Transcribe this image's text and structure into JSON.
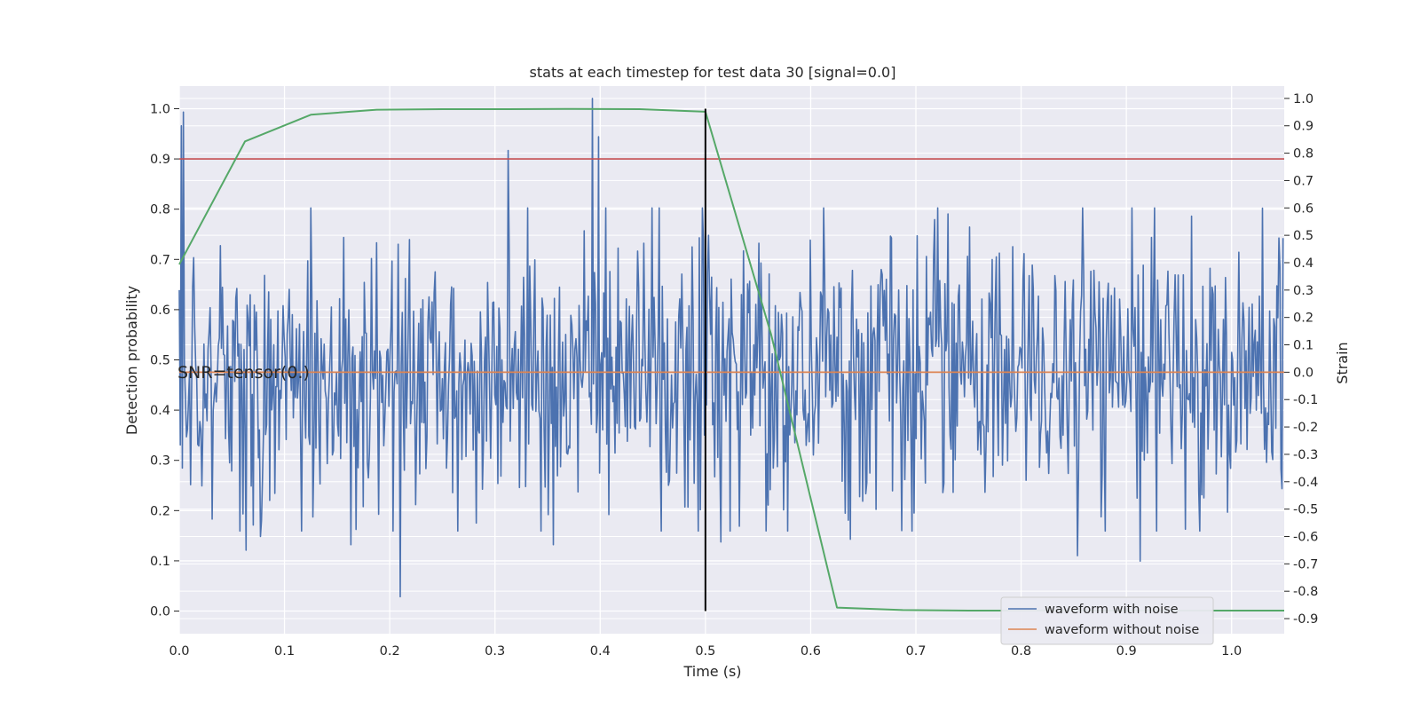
{
  "chart_data": {
    "type": "line",
    "title": "stats at each timestep for test data 30 [signal=0.0]",
    "xlabel": "Time (s)",
    "ylabel_left": "Detection probability",
    "ylabel_right": "Strain",
    "xlim": [
      0.0,
      1.05
    ],
    "ylim_left": [
      -0.045,
      1.045
    ],
    "ylim_right": [
      -0.955,
      1.045
    ],
    "x_ticks": [
      "0.0",
      "0.1",
      "0.2",
      "0.3",
      "0.4",
      "0.5",
      "0.6",
      "0.7",
      "0.8",
      "0.9",
      "1.0"
    ],
    "y_ticks_left": [
      "0.0",
      "0.1",
      "0.2",
      "0.3",
      "0.4",
      "0.5",
      "0.6",
      "0.7",
      "0.8",
      "0.9",
      "1.0"
    ],
    "y_ticks_right": [
      "-0.9",
      "-0.8",
      "-0.7",
      "-0.6",
      "-0.5",
      "-0.4",
      "-0.3",
      "-0.2",
      "-0.1",
      "0.0",
      "0.1",
      "0.2",
      "0.3",
      "0.4",
      "0.5",
      "0.6",
      "0.7",
      "0.8",
      "0.9",
      "1.0"
    ],
    "grid": true,
    "legend_position": "lower-right",
    "annotation": "SNR=tensor(0.)",
    "series": [
      {
        "name": "waveform with noise",
        "axis": "right",
        "color": "#4c72b0",
        "dt": 0.0009766,
        "n_samples": 1075,
        "known_points": [
          [
            0.0,
            0.3
          ],
          [
            0.0015,
            0.9
          ],
          [
            0.003,
            -0.35
          ],
          [
            0.004,
            0.95
          ],
          [
            0.063,
            -0.65
          ],
          [
            0.077,
            -0.6
          ],
          [
            0.163,
            -0.63
          ],
          [
            0.2,
            0.06
          ],
          [
            0.21,
            -0.82
          ],
          [
            0.313,
            0.81
          ],
          [
            0.355,
            -0.63
          ],
          [
            0.393,
            1.0
          ],
          [
            0.396,
            0.25
          ],
          [
            0.398,
            0.86
          ],
          [
            0.408,
            -0.52
          ],
          [
            0.503,
            0.5
          ],
          [
            0.515,
            -0.62
          ],
          [
            0.578,
            -0.58
          ],
          [
            0.638,
            -0.61
          ],
          [
            0.854,
            -0.67
          ],
          [
            0.913,
            -0.69
          ],
          [
            1.045,
            0.49
          ]
        ]
      },
      {
        "name": "waveform without noise",
        "axis": "right",
        "color": "#dd8452",
        "x": [
          0.0,
          1.05
        ],
        "y": [
          0.0,
          0.0
        ]
      },
      {
        "axis": "left",
        "color": "#55a868",
        "x": [
          0.0,
          0.0625,
          0.125,
          0.1875,
          0.25,
          0.3125,
          0.375,
          0.4375,
          0.5,
          0.5625,
          0.625,
          0.6875,
          0.75,
          0.8125,
          0.875,
          0.9375,
          1.0,
          1.05
        ],
        "y": [
          0.69,
          0.935,
          0.988,
          0.998,
          0.999,
          0.999,
          0.9995,
          0.999,
          0.994,
          0.55,
          0.007,
          0.002,
          0.001,
          0.001,
          0.001,
          0.001,
          0.001,
          0.001
        ]
      }
    ],
    "threshold": {
      "axis": "left",
      "value": 0.9,
      "color": "#c44e52"
    },
    "marker_line": {
      "x": 0.5,
      "y_range": [
        0.0,
        1.0
      ],
      "color": "#000000"
    }
  }
}
